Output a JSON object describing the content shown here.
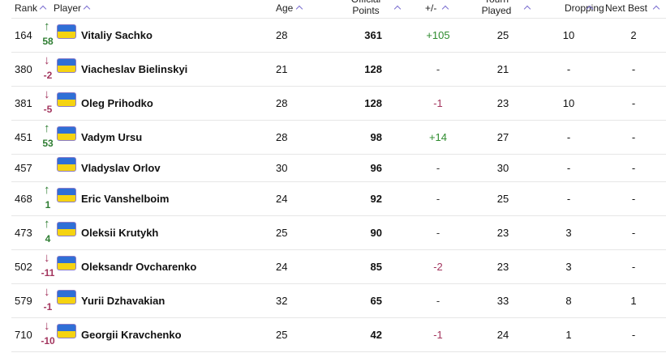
{
  "table": {
    "headers": {
      "rank": "Rank",
      "player": "Player",
      "age": "Age",
      "points": "Official Points",
      "diff": "+/-",
      "played": "Tourn Played",
      "dropping": "Dropping",
      "next": "Next Best"
    },
    "rows": [
      {
        "rank": "164",
        "move": "58",
        "name": "Vitaliy Sachko",
        "age": "28",
        "points": "361",
        "diff": "+105",
        "played": "25",
        "dropping": "10",
        "next": "2"
      },
      {
        "rank": "380",
        "move": "-2",
        "name": "Viacheslav Bielinskyi",
        "age": "21",
        "points": "128",
        "diff": "-",
        "played": "21",
        "dropping": "-",
        "next": "-"
      },
      {
        "rank": "381",
        "move": "-5",
        "name": "Oleg Prihodko",
        "age": "28",
        "points": "128",
        "diff": "-1",
        "played": "23",
        "dropping": "10",
        "next": "-"
      },
      {
        "rank": "451",
        "move": "53",
        "name": "Vadym Ursu",
        "age": "28",
        "points": "98",
        "diff": "+14",
        "played": "27",
        "dropping": "-",
        "next": "-"
      },
      {
        "rank": "457",
        "move": null,
        "name": "Vladyslav Orlov",
        "age": "30",
        "points": "96",
        "diff": "-",
        "played": "30",
        "dropping": "-",
        "next": "-"
      },
      {
        "rank": "468",
        "move": "1",
        "name": "Eric Vanshelboim",
        "age": "24",
        "points": "92",
        "diff": "-",
        "played": "25",
        "dropping": "-",
        "next": "-"
      },
      {
        "rank": "473",
        "move": "4",
        "name": "Oleksii Krutykh",
        "age": "25",
        "points": "90",
        "diff": "-",
        "played": "23",
        "dropping": "3",
        "next": "-"
      },
      {
        "rank": "502",
        "move": "-11",
        "name": "Oleksandr Ovcharenko",
        "age": "24",
        "points": "85",
        "diff": "-2",
        "played": "23",
        "dropping": "3",
        "next": "-"
      },
      {
        "rank": "579",
        "move": "-1",
        "name": "Yurii Dzhavakian",
        "age": "32",
        "points": "65",
        "diff": "-",
        "played": "33",
        "dropping": "8",
        "next": "1"
      },
      {
        "rank": "710",
        "move": "-10",
        "name": "Georgii Kravchenko",
        "age": "25",
        "points": "42",
        "diff": "-1",
        "played": "24",
        "dropping": "1",
        "next": "-"
      }
    ]
  }
}
